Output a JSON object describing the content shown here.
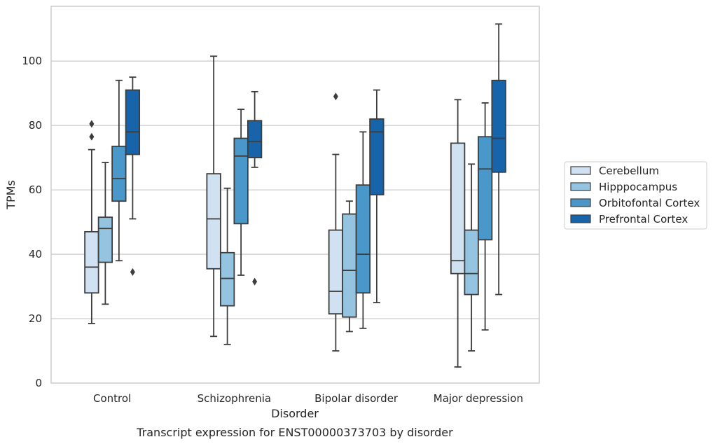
{
  "chart_data": {
    "type": "box",
    "title": "",
    "caption": "Transcript expression for ENST00000373703 by disorder",
    "xlabel": "Disorder",
    "ylabel": "TPMs",
    "ylim": [
      0,
      117
    ],
    "yticks": [
      0,
      20,
      40,
      60,
      80,
      100
    ],
    "grid": "horizontal",
    "legend_position": "right",
    "categories": [
      "Control",
      "Schizophrenia",
      "Bipolar disorder",
      "Major depression"
    ],
    "series": [
      {
        "name": "Cerebellum",
        "color": "#d0e1f2",
        "boxes": [
          {
            "whislo": 18.5,
            "q1": 28,
            "median": 36,
            "q3": 47,
            "whishi": 72.5,
            "fliers": [
              76.5,
              80.5
            ]
          },
          {
            "whislo": 14.5,
            "q1": 35.5,
            "median": 51,
            "q3": 65,
            "whishi": 101.5,
            "fliers": []
          },
          {
            "whislo": 10,
            "q1": 21.5,
            "median": 28.5,
            "q3": 47.5,
            "whishi": 71,
            "fliers": [
              89
            ]
          },
          {
            "whislo": 5,
            "q1": 34,
            "median": 38,
            "q3": 74.5,
            "whishi": 88,
            "fliers": []
          }
        ]
      },
      {
        "name": "Hipppocampus",
        "color": "#94c4df",
        "boxes": [
          {
            "whislo": 24.5,
            "q1": 37.5,
            "median": 48,
            "q3": 51.5,
            "whishi": 68.5,
            "fliers": []
          },
          {
            "whislo": 12,
            "q1": 24,
            "median": 32.5,
            "q3": 40.5,
            "whishi": 60.5,
            "fliers": []
          },
          {
            "whislo": 16,
            "q1": 20.5,
            "median": 35,
            "q3": 52.5,
            "whishi": 56.5,
            "fliers": []
          },
          {
            "whislo": 10,
            "q1": 27.5,
            "median": 34,
            "q3": 47.5,
            "whishi": 68,
            "fliers": []
          }
        ]
      },
      {
        "name": "Orbitofontal Cortex",
        "color": "#4a98c9",
        "boxes": [
          {
            "whislo": 38,
            "q1": 56.5,
            "median": 63.5,
            "q3": 73.5,
            "whishi": 94,
            "fliers": []
          },
          {
            "whislo": 33.5,
            "q1": 49.5,
            "median": 70.5,
            "q3": 76,
            "whishi": 85,
            "fliers": []
          },
          {
            "whislo": 17,
            "q1": 28,
            "median": 40,
            "q3": 61.5,
            "whishi": 78,
            "fliers": []
          },
          {
            "whislo": 16.5,
            "q1": 44.5,
            "median": 66.5,
            "q3": 76.5,
            "whishi": 87,
            "fliers": []
          }
        ]
      },
      {
        "name": "Prefrontal Cortex",
        "color": "#1764ab",
        "boxes": [
          {
            "whislo": 51,
            "q1": 71,
            "median": 78,
            "q3": 91,
            "whishi": 95,
            "fliers": [
              34.5
            ]
          },
          {
            "whislo": 67,
            "q1": 70,
            "median": 75,
            "q3": 81.5,
            "whishi": 90.5,
            "fliers": [
              31.5
            ]
          },
          {
            "whislo": 25,
            "q1": 58.5,
            "median": 78,
            "q3": 82,
            "whishi": 91,
            "fliers": []
          },
          {
            "whislo": 27.5,
            "q1": 65.5,
            "median": 76,
            "q3": 94,
            "whishi": 111.5,
            "fliers": []
          }
        ]
      }
    ]
  }
}
